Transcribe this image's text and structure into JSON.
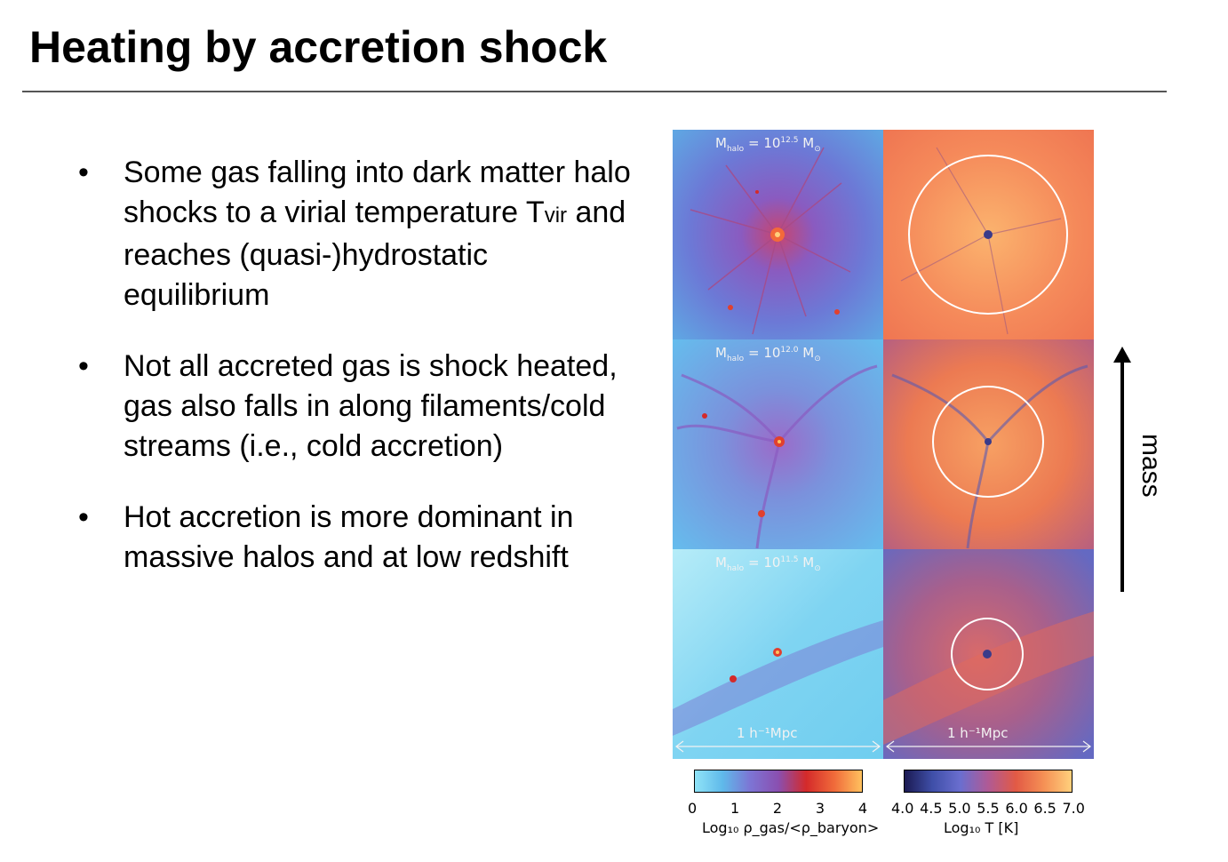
{
  "slide": {
    "title": "Heating by accretion shock"
  },
  "bullets": [
    {
      "before": "Some gas falling into dark matter halo shocks to a virial temperature T",
      "sub": "vir",
      "after": " and reaches (quasi-)hydrostatic equilibrium"
    },
    {
      "before": "Not all accreted gas is shock heated, gas also falls in along filaments/cold streams (i.e., cold accretion)",
      "sub": "",
      "after": ""
    },
    {
      "before": "Hot accretion is more dominant in massive halos and at low redshift",
      "sub": "",
      "after": ""
    }
  ],
  "figure": {
    "rows": [
      {
        "m_symbol": "M",
        "m_sub": "halo",
        "equals": "=",
        "m_value": "10",
        "m_exp": "12.5",
        "m_unit": "M",
        "m_unit_sub": "⊙"
      },
      {
        "m_symbol": "M",
        "m_sub": "halo",
        "equals": "=",
        "m_value": "10",
        "m_exp": "12.0",
        "m_unit": "M",
        "m_unit_sub": "⊙"
      },
      {
        "m_symbol": "M",
        "m_sub": "halo",
        "equals": "=",
        "m_value": "10",
        "m_exp": "11.5",
        "m_unit": "M",
        "m_unit_sub": "⊙"
      }
    ],
    "scale_label": "1 h⁻¹Mpc",
    "arrow_label": "mass",
    "density_colorbar": {
      "ticks": [
        "0",
        "1",
        "2",
        "3",
        "4"
      ],
      "label": "Log₁₀ ρ_gas/<ρ_baryon>",
      "colors": [
        "#8fe3f7",
        "#5fb9ea",
        "#7d74d4",
        "#8a4fb0",
        "#d42a2a",
        "#f06a3a",
        "#ffc15e"
      ]
    },
    "temperature_colorbar": {
      "ticks": [
        "4.0",
        "4.5",
        "5.0",
        "5.5",
        "6.0",
        "6.5",
        "7.0"
      ],
      "label": "Log₁₀ T [K]",
      "colors": [
        "#1b1a52",
        "#3f4fa8",
        "#6a6ecf",
        "#b05a95",
        "#e25a45",
        "#f59055",
        "#ffd07c"
      ]
    }
  }
}
